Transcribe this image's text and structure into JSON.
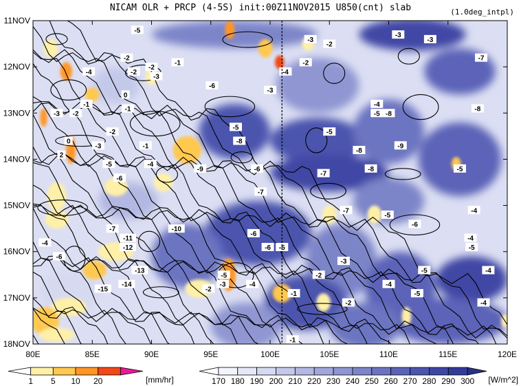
{
  "header": {
    "title": "NICAM  OLR + PRCP (4-5S) init:00Z11NOV2015 U850(cnt) slab",
    "subtitle": "(1.0deg_intpl)"
  },
  "chart_data": {
    "type": "heatmap",
    "title": "NICAM  OLR + PRCP (4-5S) init:00Z11NOV2015 U850(cnt) slab",
    "x_axis": {
      "range": [
        80,
        120
      ],
      "ticks": [
        80,
        85,
        90,
        95,
        100,
        105,
        110,
        115,
        120
      ],
      "tick_labels": [
        "80E",
        "85E",
        "90E",
        "95E",
        "100E",
        "105E",
        "110E",
        "115E",
        "120E"
      ]
    },
    "y_axis": {
      "range": [
        "11NOV",
        "18NOV"
      ],
      "ticks": [
        11,
        12,
        13,
        14,
        15,
        16,
        17,
        18
      ],
      "tick_labels": [
        "11NOV",
        "12NOV",
        "13NOV",
        "14NOV",
        "15NOV",
        "16NOV",
        "17NOV",
        "18NOV"
      ],
      "inverted": true
    },
    "reference_line": {
      "lon": 101,
      "style": "dashed"
    },
    "precip_colorbar": {
      "levels": [
        "1",
        "5",
        "10",
        "20"
      ],
      "unit": "[mm/hr]",
      "colors": [
        "#ffffff",
        "#fff0a8",
        "#ffc850",
        "#ff9626",
        "#f04818",
        "#e81898"
      ]
    },
    "olr_colorbar": {
      "levels": [
        "170",
        "180",
        "190",
        "200",
        "210",
        "220",
        "230",
        "240",
        "250",
        "260",
        "270",
        "280",
        "290",
        "300"
      ],
      "unit": "[W/m^2]",
      "colors": [
        "#ffffff",
        "#f4f4fc",
        "#e6e8f7",
        "#d6daf1",
        "#c4c9ea",
        "#b2b8e2",
        "#a0a7da",
        "#8f96d2",
        "#7d85c9",
        "#6c74c1",
        "#5b63b8",
        "#4c54ae",
        "#3f47a4",
        "#333b99",
        "#283088"
      ]
    },
    "olr_patches": [
      {
        "lon": 112,
        "day": 11.3,
        "rx": 4.5,
        "ry": 0.35,
        "level": 12
      },
      {
        "lon": 97,
        "day": 11.3,
        "rx": 7,
        "ry": 0.3,
        "level": 8
      },
      {
        "lon": 116,
        "day": 12.1,
        "rx": 3,
        "ry": 0.5,
        "level": 10
      },
      {
        "lon": 104,
        "day": 12.4,
        "rx": 3.5,
        "ry": 0.6,
        "level": 7
      },
      {
        "lon": 97,
        "day": 13.4,
        "rx": 3,
        "ry": 0.6,
        "level": 11
      },
      {
        "lon": 104,
        "day": 13.6,
        "rx": 4,
        "ry": 0.5,
        "level": 11
      },
      {
        "lon": 110,
        "day": 13.4,
        "rx": 3,
        "ry": 0.7,
        "level": 9
      },
      {
        "lon": 116,
        "day": 14.0,
        "rx": 3.5,
        "ry": 0.8,
        "level": 10
      },
      {
        "lon": 105,
        "day": 14.3,
        "rx": 5,
        "ry": 0.4,
        "level": 12
      },
      {
        "lon": 110,
        "day": 14.9,
        "rx": 3,
        "ry": 0.5,
        "level": 8
      },
      {
        "lon": 99,
        "day": 15.6,
        "rx": 4.5,
        "ry": 0.7,
        "level": 11
      },
      {
        "lon": 93,
        "day": 16.1,
        "rx": 3,
        "ry": 0.7,
        "level": 9
      },
      {
        "lon": 106,
        "day": 16.2,
        "rx": 3,
        "ry": 0.8,
        "level": 8
      },
      {
        "lon": 117,
        "day": 16.6,
        "rx": 3,
        "ry": 0.5,
        "level": 12
      },
      {
        "lon": 111,
        "day": 16.8,
        "rx": 3,
        "ry": 0.8,
        "level": 10
      },
      {
        "lon": 103,
        "day": 17.1,
        "rx": 3.5,
        "ry": 0.6,
        "level": 11
      },
      {
        "lon": 115,
        "day": 17.5,
        "rx": 5,
        "ry": 0.5,
        "level": 10
      },
      {
        "lon": 108,
        "day": 17.6,
        "rx": 3,
        "ry": 0.5,
        "level": 9
      },
      {
        "lon": 98,
        "day": 17.6,
        "rx": 3,
        "ry": 0.5,
        "level": 7
      },
      {
        "lon": 87,
        "day": 12.4,
        "rx": 2,
        "ry": 0.4,
        "level": 4
      },
      {
        "lon": 88,
        "day": 14.9,
        "rx": 2.5,
        "ry": 0.4,
        "level": 5
      },
      {
        "lon": 83,
        "day": 16.9,
        "rx": 2.5,
        "ry": 0.5,
        "level": 3
      }
    ],
    "precip_patches": [
      {
        "lon": 81.5,
        "day": 11.6,
        "rx": 0.6,
        "ry": 0.2,
        "level": 1
      },
      {
        "lon": 82.8,
        "day": 12.1,
        "rx": 0.5,
        "ry": 0.2,
        "level": 3
      },
      {
        "lon": 85.0,
        "day": 12.6,
        "rx": 0.6,
        "ry": 0.15,
        "level": 2
      },
      {
        "lon": 80.9,
        "day": 13.1,
        "rx": 0.3,
        "ry": 0.2,
        "level": 3
      },
      {
        "lon": 83.2,
        "day": 13.8,
        "rx": 0.4,
        "ry": 0.3,
        "level": 3
      },
      {
        "lon": 90.0,
        "day": 12.2,
        "rx": 0.5,
        "ry": 0.2,
        "level": 1
      },
      {
        "lon": 96.6,
        "day": 11.2,
        "rx": 0.4,
        "ry": 0.2,
        "level": 3
      },
      {
        "lon": 99.6,
        "day": 11.6,
        "rx": 0.6,
        "ry": 0.2,
        "level": 2
      },
      {
        "lon": 100.8,
        "day": 11.9,
        "rx": 0.4,
        "ry": 0.15,
        "level": 4
      },
      {
        "lon": 103.2,
        "day": 11.5,
        "rx": 0.5,
        "ry": 0.15,
        "level": 1
      },
      {
        "lon": 93.0,
        "day": 13.8,
        "rx": 1.2,
        "ry": 0.3,
        "level": 2
      },
      {
        "lon": 91.0,
        "day": 14.5,
        "rx": 0.8,
        "ry": 0.2,
        "level": 1
      },
      {
        "lon": 87.0,
        "day": 14.6,
        "rx": 1.0,
        "ry": 0.2,
        "level": 1
      },
      {
        "lon": 82.0,
        "day": 14.8,
        "rx": 0.8,
        "ry": 0.3,
        "level": 1
      },
      {
        "lon": 82.0,
        "day": 15.3,
        "rx": 1.0,
        "ry": 0.2,
        "level": 1
      },
      {
        "lon": 87.0,
        "day": 16.0,
        "rx": 1.5,
        "ry": 0.2,
        "level": 1
      },
      {
        "lon": 85.2,
        "day": 16.4,
        "rx": 1.0,
        "ry": 0.2,
        "level": 2
      },
      {
        "lon": 83.0,
        "day": 17.2,
        "rx": 1.5,
        "ry": 0.2,
        "level": 1
      },
      {
        "lon": 81.0,
        "day": 17.5,
        "rx": 1.2,
        "ry": 0.3,
        "level": 2
      },
      {
        "lon": 82.0,
        "day": 17.8,
        "rx": 1.5,
        "ry": 0.15,
        "level": 1
      },
      {
        "lon": 96.5,
        "day": 16.5,
        "rx": 0.6,
        "ry": 0.35,
        "level": 3
      },
      {
        "lon": 94.0,
        "day": 16.8,
        "rx": 1.2,
        "ry": 0.2,
        "level": 1
      },
      {
        "lon": 101.0,
        "day": 16.9,
        "rx": 0.8,
        "ry": 0.2,
        "level": 2
      },
      {
        "lon": 104.5,
        "day": 17.1,
        "rx": 0.6,
        "ry": 0.2,
        "level": 1
      },
      {
        "lon": 105.0,
        "day": 15.2,
        "rx": 0.6,
        "ry": 0.2,
        "level": 1
      },
      {
        "lon": 108.8,
        "day": 15.2,
        "rx": 0.6,
        "ry": 0.2,
        "level": 1
      },
      {
        "lon": 115.7,
        "day": 14.1,
        "rx": 0.4,
        "ry": 0.15,
        "level": 2
      },
      {
        "lon": 111.5,
        "day": 17.4,
        "rx": 0.4,
        "ry": 0.2,
        "level": 1
      },
      {
        "lon": 119.8,
        "day": 17.5,
        "rx": 0.3,
        "ry": 0.15,
        "level": 1
      }
    ],
    "contour_labels": [
      {
        "text": "-5",
        "lon": 88.8,
        "day": 11.2
      },
      {
        "text": "-3",
        "lon": 103.4,
        "day": 11.4
      },
      {
        "text": "-2",
        "lon": 105.0,
        "day": 11.5
      },
      {
        "text": "-3",
        "lon": 110.8,
        "day": 11.3
      },
      {
        "text": "-3",
        "lon": 113.5,
        "day": 11.4
      },
      {
        "text": "-7",
        "lon": 117.8,
        "day": 11.8
      },
      {
        "text": "-2",
        "lon": 87.9,
        "day": 11.8
      },
      {
        "text": "-2",
        "lon": 88.5,
        "day": 12.1
      },
      {
        "text": "-2",
        "lon": 90.0,
        "day": 12.0
      },
      {
        "text": "-3",
        "lon": 90.4,
        "day": 12.2
      },
      {
        "text": "-4",
        "lon": 84.7,
        "day": 12.1
      },
      {
        "text": "-6",
        "lon": 95.1,
        "day": 12.4
      },
      {
        "text": "-4",
        "lon": 101.3,
        "day": 12.1
      },
      {
        "text": "-2",
        "lon": 103.0,
        "day": 11.9
      },
      {
        "text": "-3",
        "lon": 100.0,
        "day": 12.5
      },
      {
        "text": "-1",
        "lon": 92.2,
        "day": 11.9
      },
      {
        "text": "0",
        "lon": 87.8,
        "day": 12.6
      },
      {
        "text": "-1",
        "lon": 88.0,
        "day": 12.9
      },
      {
        "text": "-3",
        "lon": 82.0,
        "day": 13.0
      },
      {
        "text": "-2",
        "lon": 83.6,
        "day": 13.0
      },
      {
        "text": "-1",
        "lon": 84.5,
        "day": 12.8
      },
      {
        "text": "-4",
        "lon": 109.0,
        "day": 12.8
      },
      {
        "text": "-5",
        "lon": 109.0,
        "day": 13.0
      },
      {
        "text": "-8",
        "lon": 110.0,
        "day": 13.0
      },
      {
        "text": "-8",
        "lon": 117.5,
        "day": 12.9
      },
      {
        "text": "-2",
        "lon": 86.7,
        "day": 13.4
      },
      {
        "text": "0",
        "lon": 83.0,
        "day": 13.6
      },
      {
        "text": "-3",
        "lon": 85.5,
        "day": 13.7
      },
      {
        "text": "-1",
        "lon": 89.5,
        "day": 13.7
      },
      {
        "text": "-5",
        "lon": 97.1,
        "day": 13.3
      },
      {
        "text": "-8",
        "lon": 97.4,
        "day": 13.6
      },
      {
        "text": "-5",
        "lon": 105.0,
        "day": 13.4
      },
      {
        "text": "-8",
        "lon": 107.5,
        "day": 13.8
      },
      {
        "text": "-9",
        "lon": 111.0,
        "day": 13.7
      },
      {
        "text": "2",
        "lon": 82.4,
        "day": 13.9
      },
      {
        "text": "-5",
        "lon": 86.4,
        "day": 14.1
      },
      {
        "text": "-4",
        "lon": 89.9,
        "day": 14.1
      },
      {
        "text": "-6",
        "lon": 87.3,
        "day": 14.4
      },
      {
        "text": "-9",
        "lon": 94.1,
        "day": 14.2
      },
      {
        "text": "-6",
        "lon": 98.9,
        "day": 14.2
      },
      {
        "text": "-7",
        "lon": 104.5,
        "day": 14.3
      },
      {
        "text": "-8",
        "lon": 108.5,
        "day": 14.2
      },
      {
        "text": "-5",
        "lon": 116.0,
        "day": 14.2
      },
      {
        "text": "-7",
        "lon": 99.2,
        "day": 14.7
      },
      {
        "text": "-4",
        "lon": 117.2,
        "day": 15.1
      },
      {
        "text": "-7",
        "lon": 106.4,
        "day": 15.1
      },
      {
        "text": "-5",
        "lon": 109.9,
        "day": 15.2
      },
      {
        "text": "-6",
        "lon": 112.2,
        "day": 15.4
      },
      {
        "text": "-7",
        "lon": 86.7,
        "day": 15.5
      },
      {
        "text": "-10",
        "lon": 92.1,
        "day": 15.5
      },
      {
        "text": "-6",
        "lon": 98.6,
        "day": 15.6
      },
      {
        "text": "-4",
        "lon": 116.9,
        "day": 15.7
      },
      {
        "text": "-5",
        "lon": 117.0,
        "day": 15.9
      },
      {
        "text": "-11",
        "lon": 88.0,
        "day": 15.7
      },
      {
        "text": "-12",
        "lon": 88.0,
        "day": 15.9
      },
      {
        "text": "-4",
        "lon": 81.0,
        "day": 15.8
      },
      {
        "text": "-6",
        "lon": 99.8,
        "day": 15.9
      },
      {
        "text": "-5",
        "lon": 101.0,
        "day": 15.9
      },
      {
        "text": "-6",
        "lon": 82.2,
        "day": 16.1
      },
      {
        "text": "-3",
        "lon": 106.2,
        "day": 16.2
      },
      {
        "text": "-5",
        "lon": 113.0,
        "day": 16.4
      },
      {
        "text": "-4",
        "lon": 118.4,
        "day": 16.4
      },
      {
        "text": "-13",
        "lon": 89.0,
        "day": 16.4
      },
      {
        "text": "-5",
        "lon": 96.1,
        "day": 16.5
      },
      {
        "text": "-2",
        "lon": 104.1,
        "day": 16.5
      },
      {
        "text": "-4",
        "lon": 110.0,
        "day": 16.7
      },
      {
        "text": "-14",
        "lon": 87.9,
        "day": 16.7
      },
      {
        "text": "-15",
        "lon": 85.9,
        "day": 16.8
      },
      {
        "text": "-4",
        "lon": 98.5,
        "day": 16.7
      },
      {
        "text": "-3",
        "lon": 96.0,
        "day": 16.7
      },
      {
        "text": "-2",
        "lon": 94.8,
        "day": 16.8
      },
      {
        "text": "-5",
        "lon": 112.4,
        "day": 16.9
      },
      {
        "text": "-1",
        "lon": 102.0,
        "day": 16.9
      },
      {
        "text": "-2",
        "lon": 106.6,
        "day": 17.1
      },
      {
        "text": "-4",
        "lon": 118.0,
        "day": 17.1
      },
      {
        "text": "-1",
        "lon": 101.9,
        "day": 17.9
      }
    ]
  }
}
